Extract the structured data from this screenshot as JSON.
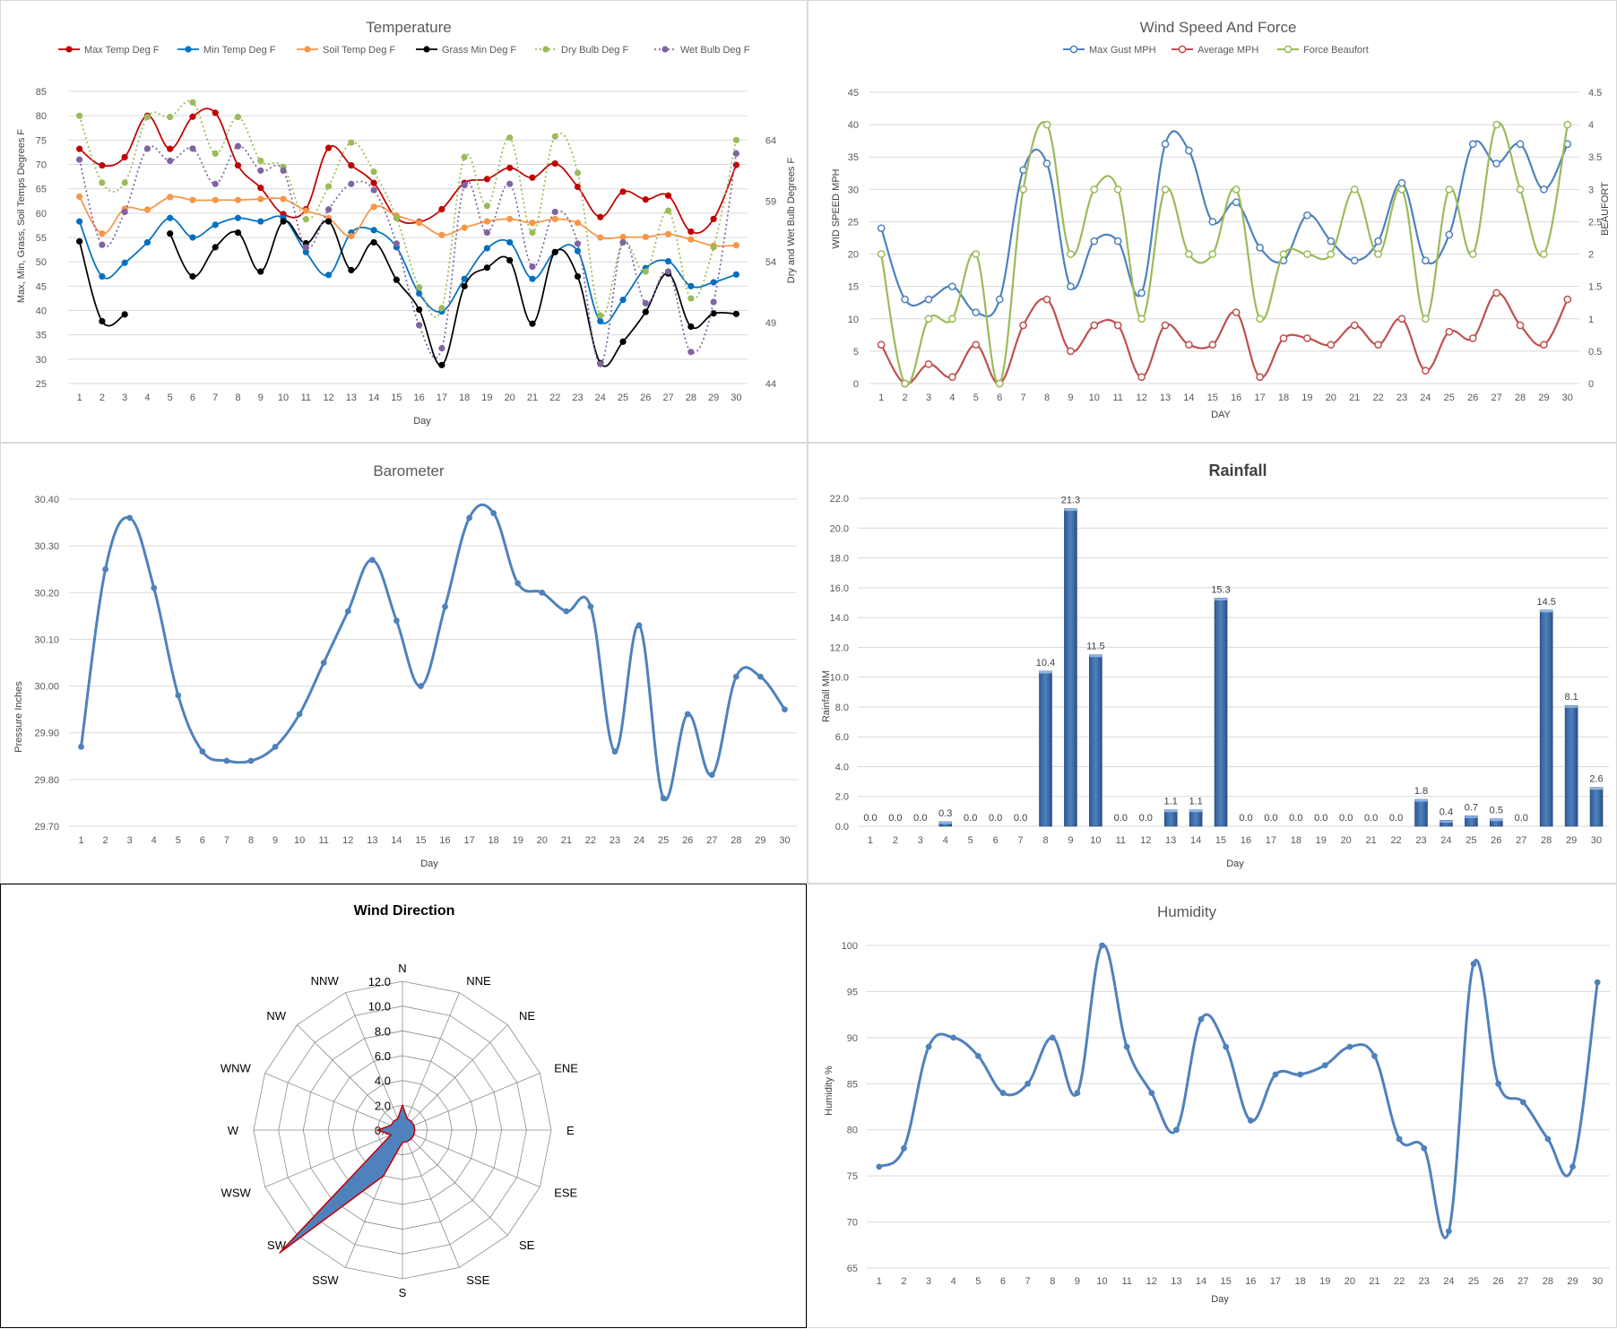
{
  "days": [
    "1",
    "2",
    "3",
    "4",
    "5",
    "6",
    "7",
    "8",
    "9",
    "10",
    "11",
    "12",
    "13",
    "14",
    "15",
    "16",
    "17",
    "18",
    "19",
    "20",
    "21",
    "22",
    "23",
    "24",
    "25",
    "26",
    "27",
    "28",
    "29",
    "30"
  ],
  "temperature": {
    "title": "Temperature",
    "xlabel": "Day",
    "ylabel_left": "Max, Min, Grass, Soil Temps Degrees F",
    "ylabel_right": "Dry and Wet Bulb Degrees F",
    "left_ticks": [
      "25",
      "30",
      "35",
      "40",
      "45",
      "50",
      "55",
      "60",
      "65",
      "70",
      "75",
      "80",
      "85"
    ],
    "right_ticks": [
      "44",
      "49",
      "54",
      "59",
      "64"
    ]
  },
  "wind": {
    "title": "Wind Speed And Force",
    "xlabel": "DAY",
    "ylabel_left": "WID SPEED MPH",
    "ylabel_right": "BEAUFORT",
    "left_ticks": [
      "0",
      "5",
      "10",
      "15",
      "20",
      "25",
      "30",
      "35",
      "40",
      "45"
    ],
    "right_ticks": [
      "0",
      "0.5",
      "1",
      "1.5",
      "2",
      "2.5",
      "3",
      "3.5",
      "4",
      "4.5"
    ]
  },
  "barometer": {
    "title": "Barometer",
    "xlabel": "Day",
    "ylabel": "Pressure Inches",
    "ticks": [
      "29.70",
      "29.80",
      "29.90",
      "30.00",
      "30.10",
      "30.20",
      "30.30",
      "30.40"
    ]
  },
  "rainfall": {
    "title": "Rainfall",
    "xlabel": "Day",
    "ylabel": "Rainfall MM",
    "ticks": [
      "0.0",
      "2.0",
      "4.0",
      "6.0",
      "8.0",
      "10.0",
      "12.0",
      "14.0",
      "16.0",
      "18.0",
      "20.0",
      "22.0"
    ]
  },
  "wind_direction": {
    "title": "Wind Direction",
    "ticks": [
      "0.0",
      "2.0",
      "4.0",
      "6.0",
      "8.0",
      "10.0",
      "12.0"
    ]
  },
  "humidity": {
    "title": "Humidity",
    "xlabel": "Day",
    "ylabel": "Humidity %",
    "ticks": [
      "65",
      "70",
      "75",
      "80",
      "85",
      "90",
      "95",
      "100"
    ]
  },
  "chart_data": [
    {
      "type": "line",
      "title": "Temperature",
      "x": [
        1,
        2,
        3,
        4,
        5,
        6,
        7,
        8,
        9,
        10,
        11,
        12,
        13,
        14,
        15,
        16,
        17,
        18,
        19,
        20,
        21,
        22,
        23,
        24,
        25,
        26,
        27,
        28,
        29,
        30
      ],
      "ylim": [
        25,
        85
      ],
      "y2lim": [
        44,
        68
      ],
      "grid": true,
      "legend": "top",
      "series": [
        {
          "name": "Max Temp Deg F",
          "axis": "left",
          "color": "#c00000",
          "style": "solid",
          "values": [
            73.2,
            69.8,
            71.5,
            80.0,
            73.2,
            79.8,
            80.6,
            69.8,
            65.2,
            59.8,
            60.8,
            73.4,
            69.8,
            66.2,
            59.0,
            58.2,
            60.8,
            66.2,
            67.0,
            69.3,
            67.3,
            70.2,
            65.4,
            59.2,
            64.4,
            62.8,
            63.6,
            56.2,
            58.8,
            69.9
          ]
        },
        {
          "name": "Min Temp Deg F",
          "axis": "left",
          "color": "#0070c0",
          "style": "solid",
          "values": [
            58.3,
            47.0,
            49.8,
            54.0,
            59.0,
            55.0,
            57.6,
            59.0,
            58.3,
            59.0,
            52.0,
            47.3,
            56.0,
            56.5,
            53.0,
            43.5,
            39.8,
            46.5,
            52.8,
            54.0,
            46.5,
            52.0,
            52.2,
            37.8,
            42.2,
            48.7,
            50.1,
            45.0,
            45.8,
            47.4
          ]
        },
        {
          "name": "Soil Temp Deg F",
          "axis": "left",
          "color": "#f79646",
          "style": "solid",
          "values": [
            63.4,
            55.8,
            60.9,
            60.7,
            63.3,
            62.7,
            62.7,
            62.7,
            62.9,
            62.9,
            60.5,
            59.0,
            55.3,
            61.3,
            59.5,
            58.0,
            55.5,
            57.0,
            58.3,
            58.8,
            58.0,
            58.8,
            58.0,
            55.0,
            55.1,
            55.1,
            55.7,
            54.6,
            53.3,
            53.4
          ]
        },
        {
          "name": "Grass Min Deg F",
          "axis": "left",
          "color": "#000000",
          "style": "solid",
          "gaps": [
            4
          ],
          "values": [
            54.2,
            37.8,
            39.2,
            null,
            55.8,
            47.0,
            53.0,
            56.0,
            48.0,
            58.3,
            53.8,
            58.3,
            48.3,
            54.0,
            46.3,
            40.2,
            28.8,
            45.0,
            48.8,
            50.3,
            37.3,
            52.0,
            47.0,
            29.2,
            33.6,
            39.7,
            47.6,
            36.7,
            39.4,
            39.3
          ]
        },
        {
          "name": "Dry Bulb Deg F",
          "axis": "right",
          "color": "#9bbb59",
          "style": "dotted",
          "values": [
            66.0,
            60.5,
            60.5,
            65.9,
            65.9,
            67.1,
            62.9,
            65.9,
            62.3,
            61.8,
            57.5,
            60.2,
            63.8,
            61.4,
            57.6,
            51.9,
            50.2,
            62.6,
            58.6,
            64.2,
            56.4,
            64.3,
            61.3,
            49.6,
            55.6,
            53.2,
            58.2,
            51.0,
            55.2,
            64.0
          ]
        },
        {
          "name": "Wet Bulb Deg F",
          "axis": "right",
          "color": "#8064a2",
          "style": "dotted",
          "values": [
            62.4,
            55.4,
            58.1,
            63.3,
            62.3,
            63.3,
            60.4,
            63.5,
            61.5,
            61.5,
            55.2,
            58.3,
            60.4,
            59.9,
            55.5,
            48.8,
            46.9,
            60.3,
            56.4,
            60.4,
            53.6,
            58.1,
            55.5,
            45.6,
            55.6,
            50.6,
            53.2,
            46.6,
            50.7,
            62.9
          ]
        }
      ]
    },
    {
      "type": "line",
      "title": "Wind Speed And Force",
      "x": [
        1,
        2,
        3,
        4,
        5,
        6,
        7,
        8,
        9,
        10,
        11,
        12,
        13,
        14,
        15,
        16,
        17,
        18,
        19,
        20,
        21,
        22,
        23,
        24,
        25,
        26,
        27,
        28,
        29,
        30
      ],
      "ylim": [
        0,
        45
      ],
      "y2lim": [
        0,
        4.5
      ],
      "grid": true,
      "legend": "top",
      "series": [
        {
          "name": "Max Gust MPH",
          "axis": "left",
          "color": "#4f81bd",
          "values": [
            24,
            13,
            13,
            15,
            11,
            13,
            33,
            34,
            15,
            22,
            22,
            14,
            37,
            36,
            25,
            28,
            21,
            19,
            26,
            22,
            19,
            22,
            31,
            19,
            23,
            37,
            34,
            37,
            30,
            37
          ]
        },
        {
          "name": "Average MPH",
          "axis": "left",
          "color": "#c0504d",
          "values": [
            6,
            0,
            3,
            1,
            6,
            0,
            9,
            13,
            5,
            9,
            9,
            1,
            9,
            6,
            6,
            11,
            1,
            7,
            7,
            6,
            9,
            6,
            10,
            2,
            8,
            7,
            14,
            9,
            6,
            13
          ]
        },
        {
          "name": "Force Beaufort",
          "axis": "right",
          "color": "#9bbb59",
          "values": [
            2,
            0,
            1,
            1,
            2,
            0,
            3,
            4,
            2,
            3,
            3,
            1,
            3,
            2,
            2,
            3,
            1,
            2,
            2,
            2,
            3,
            2,
            3,
            1,
            3,
            2,
            4,
            3,
            2,
            4
          ]
        }
      ]
    },
    {
      "type": "line",
      "title": "Barometer",
      "x": [
        1,
        2,
        3,
        4,
        5,
        6,
        7,
        8,
        9,
        10,
        11,
        12,
        13,
        14,
        15,
        16,
        17,
        18,
        19,
        20,
        21,
        22,
        23,
        24,
        25,
        26,
        27,
        28,
        29,
        30
      ],
      "ylim": [
        29.7,
        30.4
      ],
      "grid": true,
      "series": [
        {
          "name": "",
          "color": "#4f81bd",
          "values": [
            29.87,
            30.25,
            30.36,
            30.21,
            29.98,
            29.86,
            29.84,
            29.84,
            29.87,
            29.94,
            30.05,
            30.16,
            30.27,
            30.14,
            30.0,
            30.17,
            30.36,
            30.37,
            30.22,
            30.2,
            30.16,
            30.17,
            29.86,
            30.13,
            29.76,
            29.94,
            29.81,
            30.02,
            30.02,
            29.95
          ]
        }
      ]
    },
    {
      "type": "bar",
      "title": "Rainfall",
      "categories": [
        "1",
        "2",
        "3",
        "4",
        "5",
        "6",
        "7",
        "8",
        "9",
        "10",
        "11",
        "12",
        "13",
        "14",
        "15",
        "16",
        "17",
        "18",
        "19",
        "20",
        "21",
        "22",
        "23",
        "24",
        "25",
        "26",
        "27",
        "28",
        "29",
        "30"
      ],
      "values": [
        0.0,
        0.0,
        0.0,
        0.3,
        0.0,
        0.0,
        0.0,
        10.4,
        21.3,
        11.5,
        0.0,
        0.0,
        1.1,
        1.1,
        15.3,
        0.0,
        0.0,
        0.0,
        0.0,
        0.0,
        0.0,
        0.0,
        1.8,
        0.4,
        0.7,
        0.5,
        0.0,
        14.5,
        8.1,
        2.6
      ],
      "labels": [
        "0.0",
        "0.0",
        "0.0",
        "0.3",
        "0.0",
        "0.0",
        "0.0",
        "10.4",
        "21.3",
        "11.5",
        "0.0",
        "0.0",
        "1.1",
        "1.1",
        "15.3",
        "0.0",
        "0.0",
        "0.0",
        "0.0",
        "0.0",
        "0.0",
        "0.0",
        "1.8",
        "0.4",
        "0.7",
        "0.5",
        "0.0",
        "14.5",
        "8.1",
        "2.6"
      ],
      "ylim": [
        0,
        22
      ],
      "grid": true,
      "color": "#4f81bd"
    },
    {
      "type": "radar",
      "title": "Wind Direction",
      "categories": [
        "N",
        "NNE",
        "NE",
        "ENE",
        "E",
        "ESE",
        "SE",
        "SSE",
        "S",
        "SSW",
        "SW",
        "WSW",
        "W",
        "WNW",
        "NW",
        "NNW"
      ],
      "values": [
        2,
        1,
        1,
        1,
        1,
        1,
        1,
        1,
        1,
        4,
        14,
        1,
        2,
        1,
        1,
        1
      ],
      "rlim": [
        0,
        12
      ],
      "fill": "#4f81bd",
      "stroke": "#c00000"
    },
    {
      "type": "line",
      "title": "Humidity",
      "x": [
        1,
        2,
        3,
        4,
        5,
        6,
        7,
        8,
        9,
        10,
        11,
        12,
        13,
        14,
        15,
        16,
        17,
        18,
        19,
        20,
        21,
        22,
        23,
        24,
        25,
        26,
        27,
        28,
        29,
        30
      ],
      "ylim": [
        65,
        100
      ],
      "grid": true,
      "series": [
        {
          "name": "",
          "color": "#4f81bd",
          "values": [
            76,
            78,
            89,
            90,
            88,
            84,
            85,
            90,
            84,
            100,
            89,
            84,
            80,
            92,
            89,
            81,
            86,
            86,
            87,
            89,
            88,
            79,
            78,
            69,
            98,
            85,
            83,
            79,
            76,
            96
          ]
        }
      ]
    }
  ]
}
